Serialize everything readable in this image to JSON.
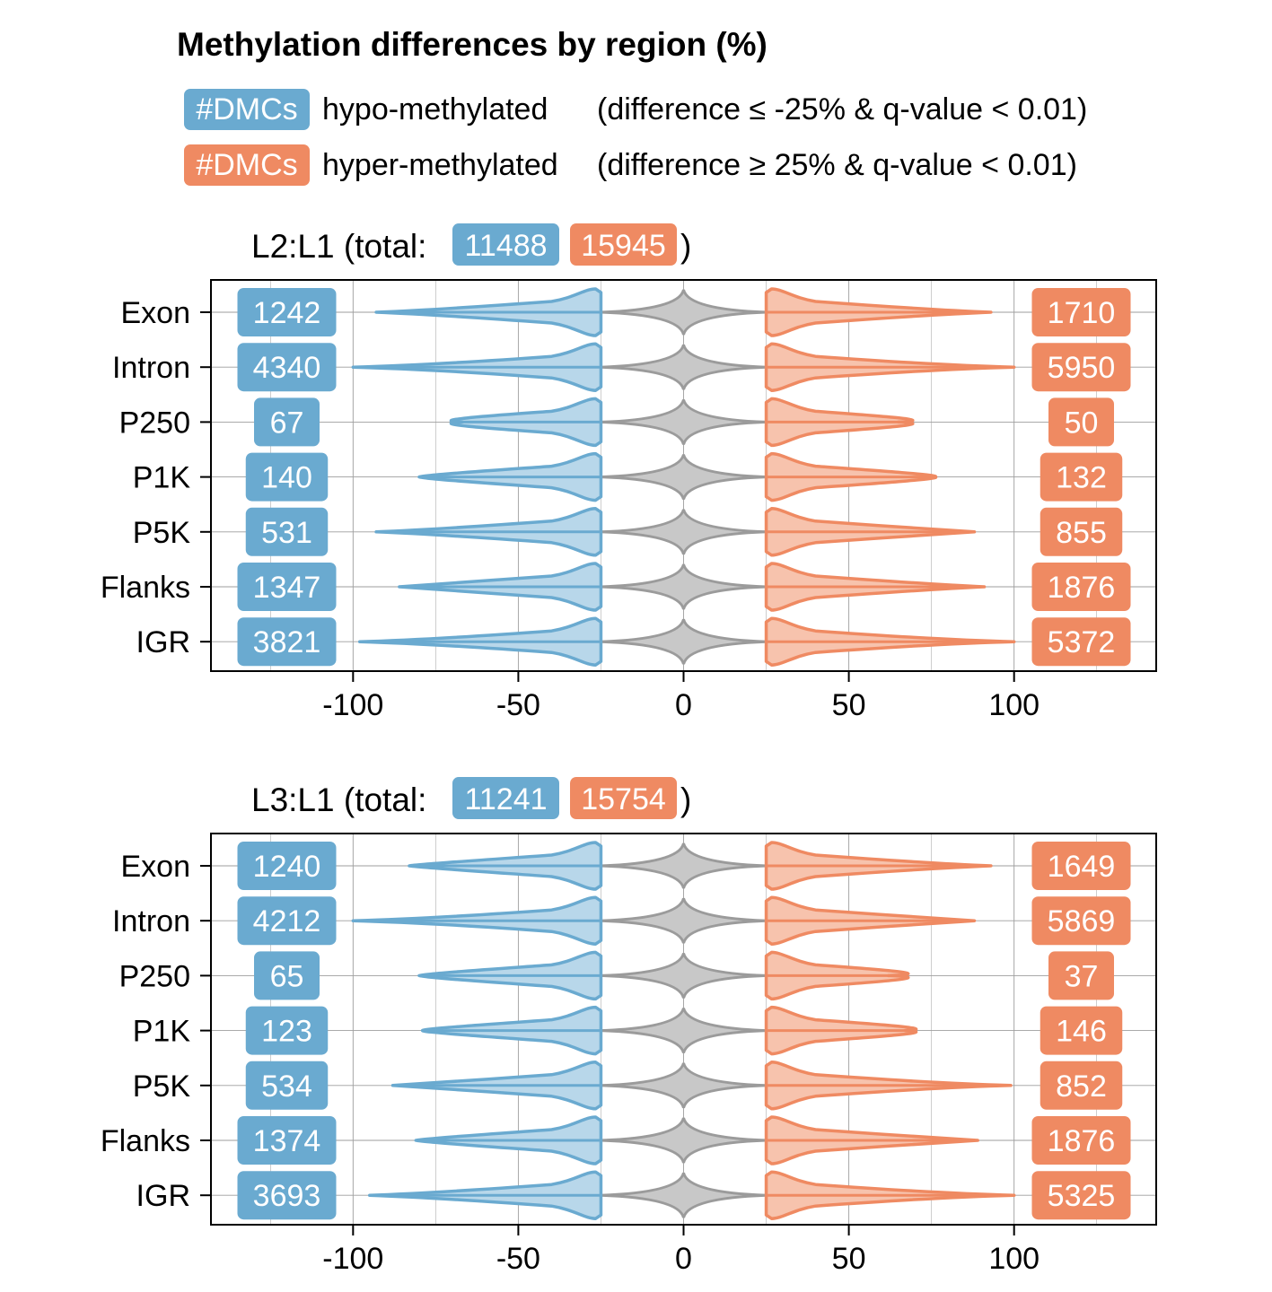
{
  "title": "Methylation differences by region (%)",
  "legend": {
    "hypo": {
      "badge": "#DMCs",
      "label": "hypo-methylated",
      "condition": "(difference ≤ -25% & q-value < 0.01)"
    },
    "hyper": {
      "badge": "#DMCs",
      "label": "hyper-methylated",
      "condition": "(difference ≥ 25% & q-value < 0.01)"
    }
  },
  "colors": {
    "hypo": "#6aaad0",
    "hypo_fill": "#b8d7ea",
    "hyper": "#ef8a62",
    "hyper_fill": "#f7c3ad",
    "neutral": "#9b9b9b",
    "grid": "#9e9e9e"
  },
  "chart_data": [
    {
      "type": "violin",
      "title_prefix": "L2:L1 (total:",
      "title_suffix": ")",
      "total_hypo": "11488",
      "total_hyper": "15945",
      "categories": [
        "Exon",
        "Intron",
        "P250",
        "P1K",
        "P5K",
        "Flanks",
        "IGR"
      ],
      "hypo_counts": [
        "1242",
        "4340",
        "67",
        "140",
        "531",
        "1347",
        "3821"
      ],
      "hyper_counts": [
        "1710",
        "5950",
        "50",
        "132",
        "855",
        "1876",
        "5372"
      ],
      "hypo_min": [
        -93,
        -100,
        -67,
        -80,
        -93,
        -86,
        -98
      ],
      "hyper_max": [
        93,
        100,
        65,
        76,
        88,
        91,
        100
      ],
      "xticks": [
        "-100",
        "-50",
        "0",
        "50",
        "100"
      ],
      "xlim": [
        -143,
        143
      ],
      "grid": true
    },
    {
      "type": "violin",
      "title_prefix": "L3:L1 (total:",
      "title_suffix": ")",
      "total_hypo": "11241",
      "total_hyper": "15754",
      "categories": [
        "Exon",
        "Intron",
        "P250",
        "P1K",
        "P5K",
        "Flanks",
        "IGR"
      ],
      "hypo_counts": [
        "1240",
        "4212",
        "65",
        "123",
        "534",
        "1374",
        "3693"
      ],
      "hyper_counts": [
        "1649",
        "5869",
        "37",
        "146",
        "852",
        "1876",
        "5325"
      ],
      "hypo_min": [
        -83,
        -100,
        -80,
        -79,
        -88,
        -81,
        -95
      ],
      "hyper_max": [
        93,
        88,
        62,
        67,
        99,
        89,
        100
      ],
      "xticks": [
        "-100",
        "-50",
        "0",
        "50",
        "100"
      ],
      "xlim": [
        -143,
        143
      ],
      "grid": true
    }
  ]
}
